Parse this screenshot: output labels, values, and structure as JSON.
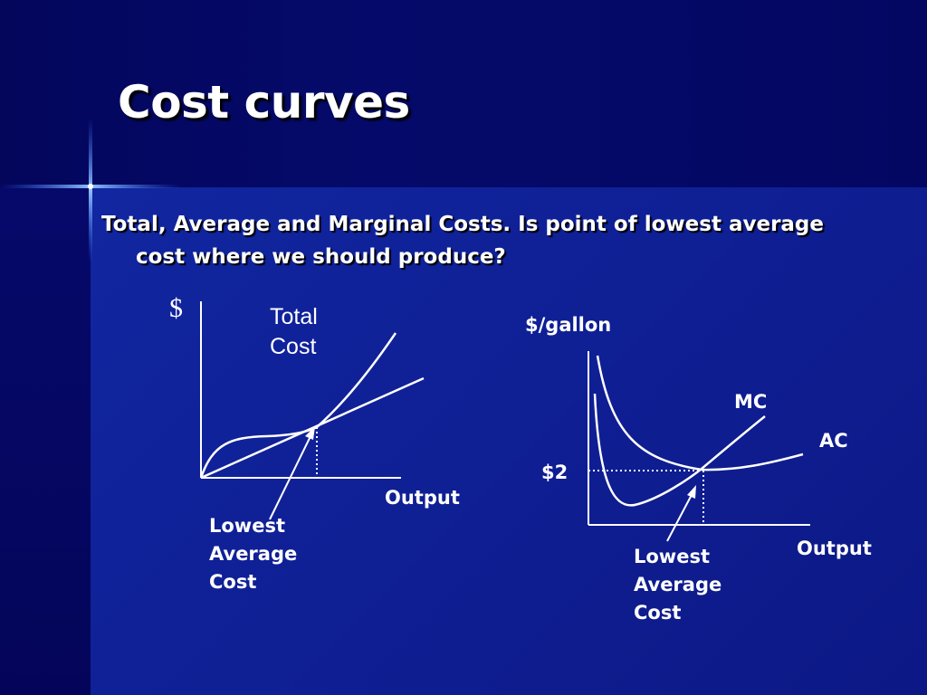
{
  "slide": {
    "title": "Cost curves",
    "body": "Total, Average and Marginal Costs. Is point of lowest average cost where we should produce?"
  },
  "left_diagram": {
    "y_axis_label": "$",
    "total_cost_label_line1": "Total",
    "total_cost_label_line2": "Cost",
    "x_axis_label": "Output",
    "annotation_line1": "Lowest",
    "annotation_line2": "Average",
    "annotation_line3": "Cost"
  },
  "right_diagram": {
    "y_axis_label": "$/gallon",
    "mc_label": "MC",
    "ac_label": "AC",
    "price_label": "$2",
    "x_axis_label": "Output",
    "annotation_line1": "Lowest",
    "annotation_line2": "Average",
    "annotation_line3": "Cost"
  },
  "colors": {
    "curve": "#ffffff",
    "background": "#0f1f94"
  }
}
